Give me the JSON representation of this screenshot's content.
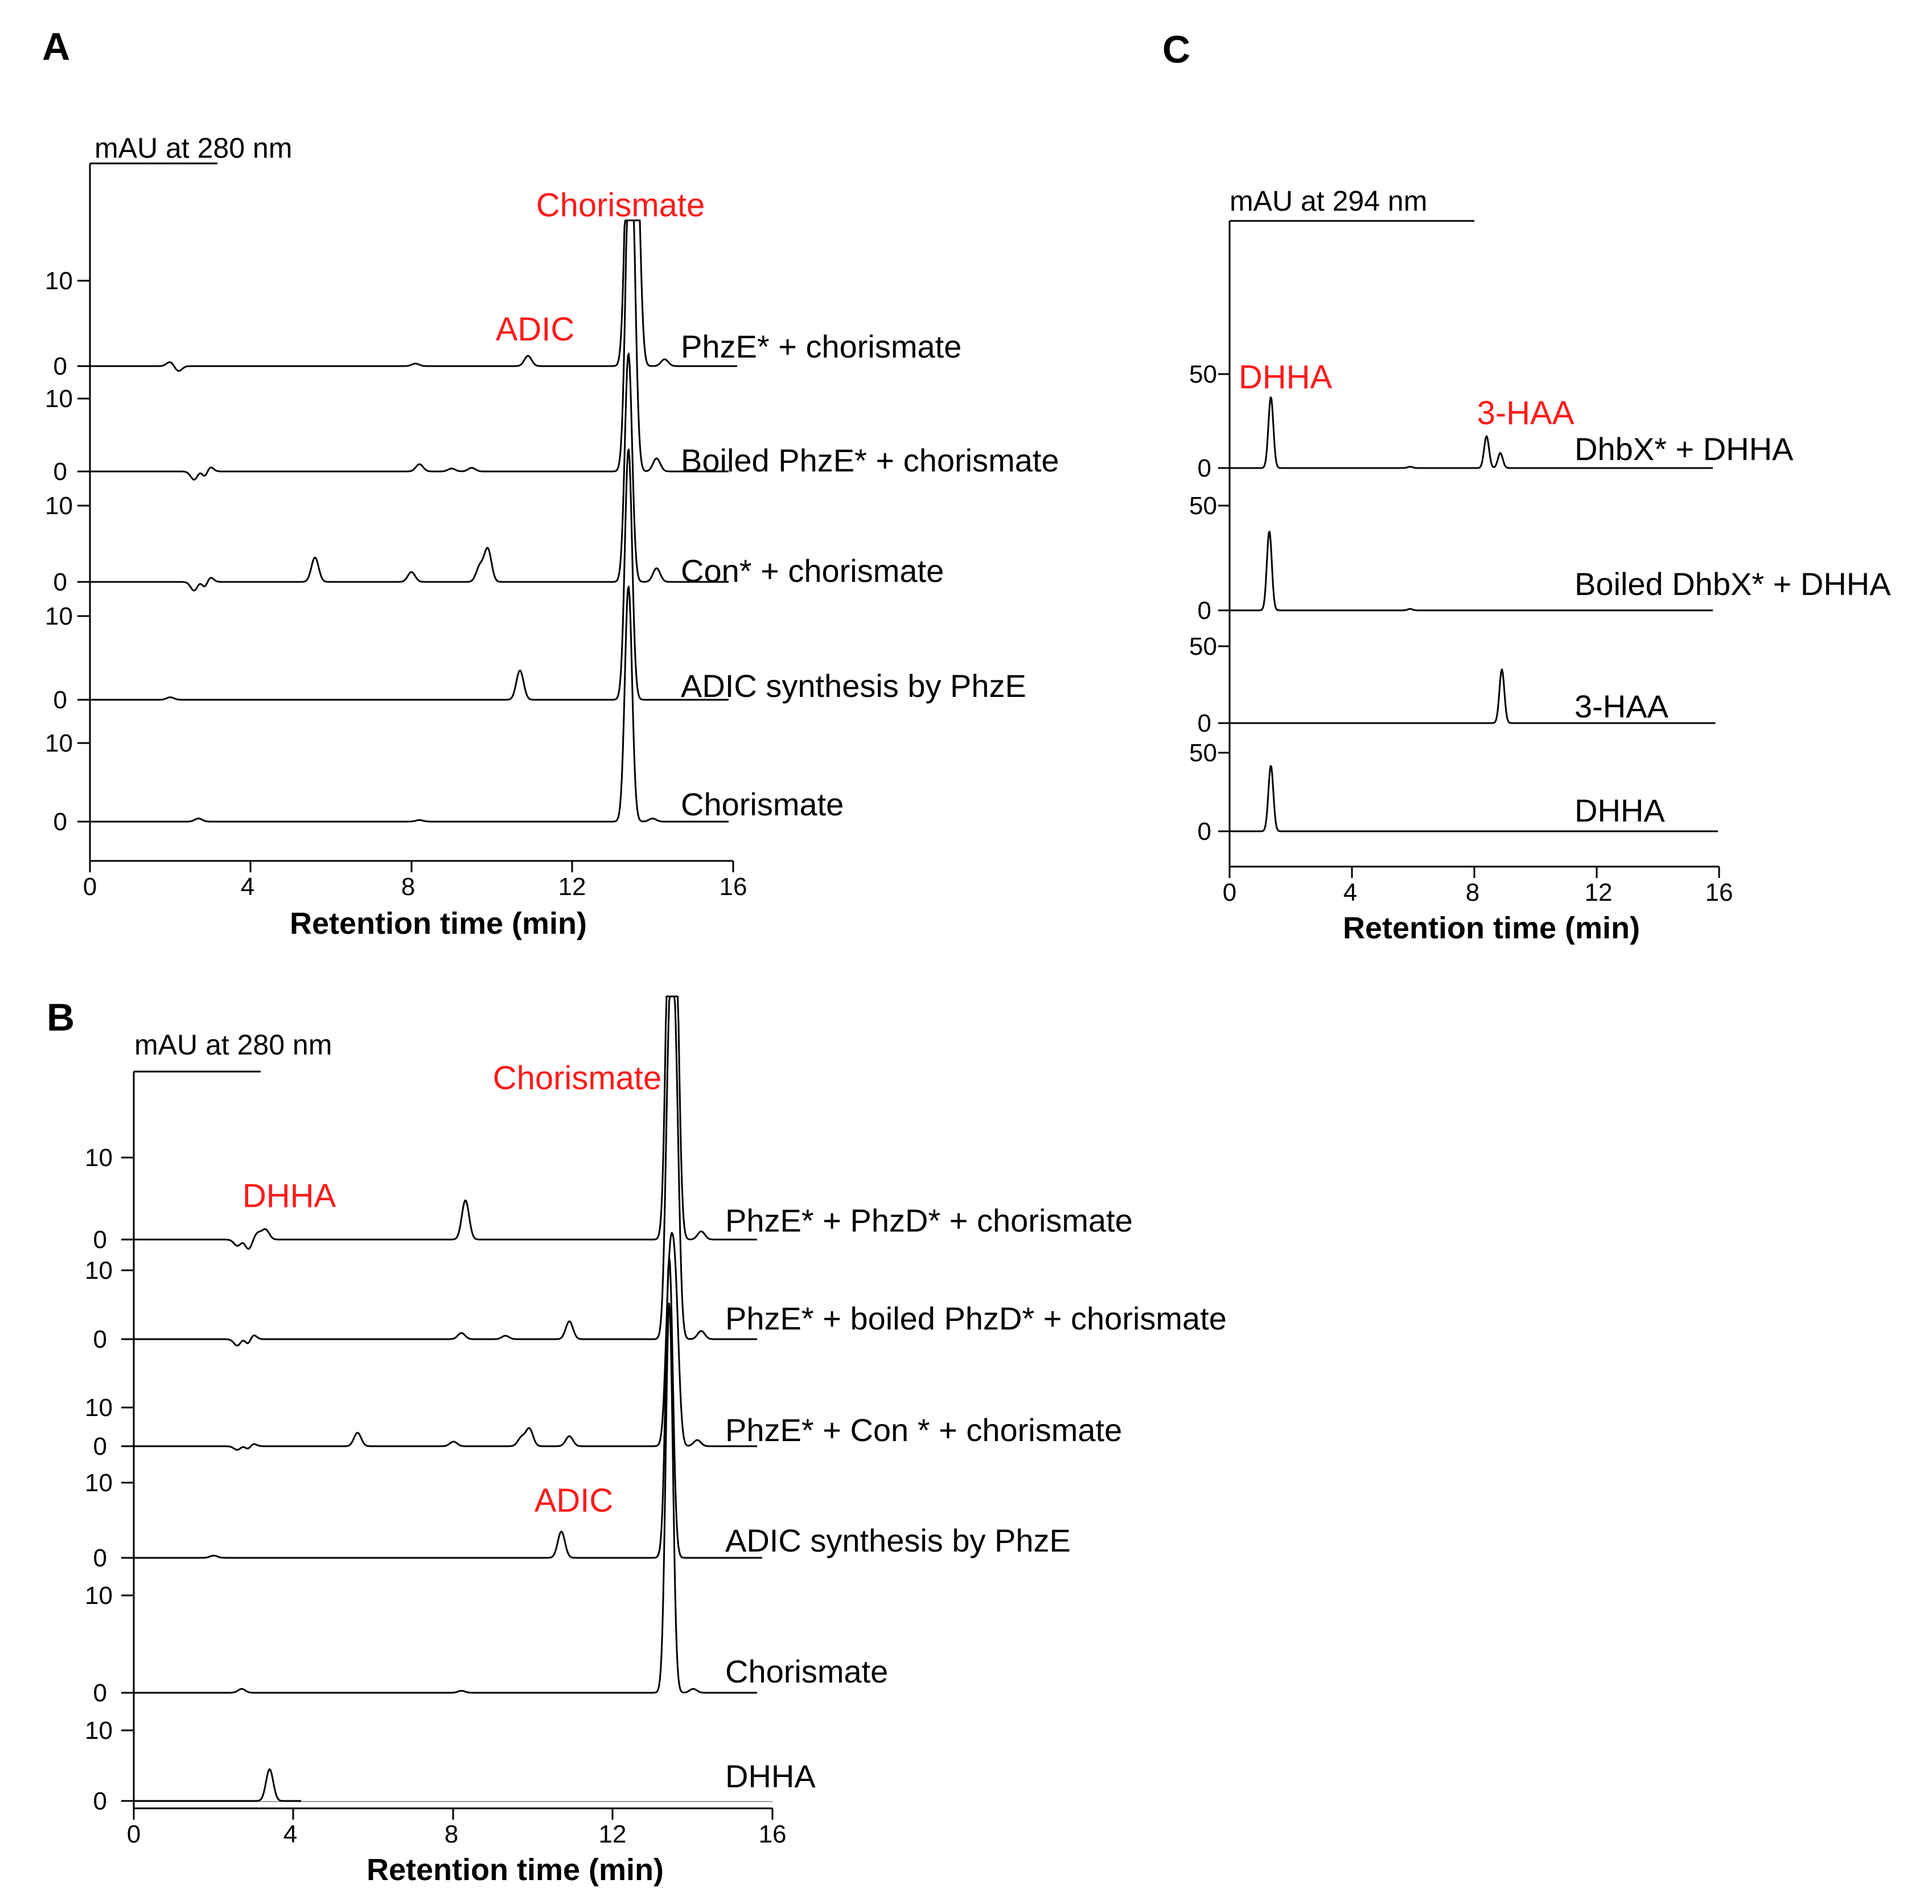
{
  "panels": {
    "A": {
      "letter": "A",
      "unit_label": "mAU at 280 nm",
      "xlabel": "Retention time (min)",
      "xticks": [
        "0",
        "4",
        "8",
        "12",
        "16"
      ],
      "traces": [
        {
          "label": "PhzE* + chorismate",
          "ytick_top": "10",
          "ytick_zero": "0"
        },
        {
          "label": "Boiled PhzE* + chorismate",
          "ytick_top": "10",
          "ytick_zero": "0"
        },
        {
          "label": "Con* + chorismate",
          "ytick_top": "10",
          "ytick_zero": "0"
        },
        {
          "label": "ADIC synthesis by PhzE",
          "ytick_top": "10",
          "ytick_zero": "0"
        },
        {
          "label": "Chorismate",
          "ytick_top": "10",
          "ytick_zero": "0"
        }
      ],
      "annotations": {
        "chorismate": "Chorismate",
        "adic": "ADIC"
      }
    },
    "B": {
      "letter": "B",
      "unit_label": "mAU at 280 nm",
      "xlabel": "Retention time (min)",
      "xticks": [
        "0",
        "4",
        "8",
        "12",
        "16"
      ],
      "traces": [
        {
          "label": "PhzE* + PhzD* + chorismate",
          "ytick_top": "10",
          "ytick_zero": "0"
        },
        {
          "label": "PhzE* + boiled PhzD* + chorismate",
          "ytick_top": "10",
          "ytick_zero": "0"
        },
        {
          "label": "PhzE* + Con * + chorismate",
          "ytick_top": "10",
          "ytick_zero": "0"
        },
        {
          "label": "ADIC synthesis by PhzE",
          "ytick_top": "10",
          "ytick_zero": "0"
        },
        {
          "label": "Chorismate",
          "ytick_top": "10",
          "ytick_zero": "0"
        },
        {
          "label": "DHHA",
          "ytick_top": "10",
          "ytick_zero": "0"
        }
      ],
      "annotations": {
        "chorismate": "Chorismate",
        "dhha": "DHHA",
        "adic": "ADIC"
      }
    },
    "C": {
      "letter": "C",
      "unit_label": "mAU at 294 nm",
      "xlabel": "Retention time (min)",
      "xticks": [
        "0",
        "4",
        "8",
        "12",
        "16"
      ],
      "traces": [
        {
          "label": "DhbX* + DHHA",
          "ytick_top": "50",
          "ytick_zero": "0"
        },
        {
          "label": "Boiled DhbX* + DHHA",
          "ytick_top": "50",
          "ytick_zero": "0"
        },
        {
          "label": "3-HAA",
          "ytick_top": "50",
          "ytick_zero": "0"
        },
        {
          "label": "DHHA",
          "ytick_top": "50",
          "ytick_zero": "0"
        }
      ],
      "annotations": {
        "dhha": "DHHA",
        "haa": "3-HAA"
      }
    }
  },
  "chart_data": [
    {
      "type": "line",
      "panel": "A",
      "title": "",
      "xlabel": "Retention time (min)",
      "ylabel": "mAU at 280 nm",
      "xlim": [
        0,
        16
      ],
      "ylim_per_trace": [
        0,
        10
      ],
      "series": [
        {
          "name": "PhzE* + chorismate",
          "peaks": [
            {
              "x": 2.0,
              "h": 0.5
            },
            {
              "x": 2.2,
              "h": -0.6
            },
            {
              "x": 8.1,
              "h": 0.3
            },
            {
              "x": 10.9,
              "h": 1.2
            },
            {
              "x": 13.4,
              "h": 30
            },
            {
              "x": 13.6,
              "h": 26
            },
            {
              "x": 14.3,
              "h": 0.8
            }
          ]
        },
        {
          "name": "Boiled PhzE* + chorismate",
          "peaks": [
            {
              "x": 2.6,
              "h": -1.2
            },
            {
              "x": 2.8,
              "h": 1.5
            },
            {
              "x": 2.85,
              "h": -2.5
            },
            {
              "x": 2.95,
              "h": 1.2
            },
            {
              "x": 8.2,
              "h": 1.0
            },
            {
              "x": 9.0,
              "h": 0.4
            },
            {
              "x": 9.5,
              "h": 0.5
            },
            {
              "x": 13.4,
              "h": 30
            },
            {
              "x": 13.5,
              "h": 28
            },
            {
              "x": 14.1,
              "h": 1.8
            }
          ]
        },
        {
          "name": "Con* + chorismate",
          "peaks": [
            {
              "x": 2.6,
              "h": -1.2
            },
            {
              "x": 2.8,
              "h": 1.5
            },
            {
              "x": 2.85,
              "h": -2.5
            },
            {
              "x": 2.95,
              "h": 1.2
            },
            {
              "x": 5.6,
              "h": 3.2
            },
            {
              "x": 8.0,
              "h": 1.3
            },
            {
              "x": 9.7,
              "h": 2.0
            },
            {
              "x": 9.9,
              "h": 4.3
            },
            {
              "x": 13.4,
              "h": 30
            },
            {
              "x": 14.1,
              "h": 1.8
            }
          ]
        },
        {
          "name": "ADIC synthesis by PhzE",
          "peaks": [
            {
              "x": 2.0,
              "h": 0.3
            },
            {
              "x": 10.7,
              "h": 3.5
            },
            {
              "x": 13.4,
              "h": 30
            }
          ]
        },
        {
          "name": "Chorismate",
          "peaks": [
            {
              "x": 2.7,
              "h": 0.4
            },
            {
              "x": 8.2,
              "h": 0.2
            },
            {
              "x": 13.4,
              "h": 30
            },
            {
              "x": 14.0,
              "h": 0.4
            }
          ]
        }
      ]
    },
    {
      "type": "line",
      "panel": "B",
      "title": "",
      "xlabel": "Retention time (min)",
      "ylabel": "mAU at 280 nm",
      "xlim": [
        0,
        16
      ],
      "ylim_per_trace": [
        0,
        10
      ],
      "series": [
        {
          "name": "PhzE* + PhzD* + chorismate",
          "peaks": [
            {
              "x": 2.6,
              "h": -0.8
            },
            {
              "x": 2.8,
              "h": 0.8
            },
            {
              "x": 2.85,
              "h": -1.8
            },
            {
              "x": 3.1,
              "h": 0.8
            },
            {
              "x": 3.3,
              "h": 1.2
            },
            {
              "x": 8.3,
              "h": 4.8
            },
            {
              "x": 13.4,
              "h": 40
            },
            {
              "x": 13.55,
              "h": 38
            },
            {
              "x": 14.2,
              "h": 1.0
            }
          ]
        },
        {
          "name": "PhzE* + boiled PhzD* + chorismate",
          "peaks": [
            {
              "x": 2.6,
              "h": -1.0
            },
            {
              "x": 2.8,
              "h": 1.5
            },
            {
              "x": 2.85,
              "h": -2.5
            },
            {
              "x": 2.95,
              "h": 1.2
            },
            {
              "x": 8.2,
              "h": 0.9
            },
            {
              "x": 9.3,
              "h": 0.5
            },
            {
              "x": 10.9,
              "h": 2.6
            },
            {
              "x": 13.4,
              "h": 40
            },
            {
              "x": 13.55,
              "h": 38
            },
            {
              "x": 14.2,
              "h": 1.2
            }
          ]
        },
        {
          "name": "PhzE* + Con * + chorismate",
          "peaks": [
            {
              "x": 2.6,
              "h": -1.0
            },
            {
              "x": 2.8,
              "h": 1.5
            },
            {
              "x": 2.85,
              "h": -2.5
            },
            {
              "x": 2.95,
              "h": 1.2
            },
            {
              "x": 5.6,
              "h": 3.5
            },
            {
              "x": 8.0,
              "h": 1.2
            },
            {
              "x": 9.7,
              "h": 2.2
            },
            {
              "x": 9.9,
              "h": 4.5
            },
            {
              "x": 10.9,
              "h": 2.6
            },
            {
              "x": 13.4,
              "h": 40
            },
            {
              "x": 13.55,
              "h": 38
            },
            {
              "x": 14.1,
              "h": 1.6
            }
          ]
        },
        {
          "name": "ADIC synthesis by PhzE",
          "peaks": [
            {
              "x": 2.0,
              "h": 0.3
            },
            {
              "x": 10.7,
              "h": 3.5
            },
            {
              "x": 13.4,
              "h": 40
            }
          ]
        },
        {
          "name": "Chorismate",
          "peaks": [
            {
              "x": 2.7,
              "h": 0.4
            },
            {
              "x": 8.2,
              "h": 0.2
            },
            {
              "x": 13.4,
              "h": 40
            },
            {
              "x": 14.0,
              "h": 0.4
            }
          ]
        },
        {
          "name": "DHHA",
          "peaks": [
            {
              "x": 3.4,
              "h": 4.5
            }
          ]
        }
      ]
    },
    {
      "type": "line",
      "panel": "C",
      "title": "",
      "xlabel": "Retention time (min)",
      "ylabel": "mAU at 294 nm",
      "xlim": [
        0,
        16
      ],
      "ylim_per_trace": [
        0,
        50
      ],
      "series": [
        {
          "name": "DhbX* + DHHA",
          "peaks": [
            {
              "x": 1.35,
              "h": 38
            },
            {
              "x": 5.9,
              "h": 0.7
            },
            {
              "x": 8.4,
              "h": 17
            },
            {
              "x": 8.85,
              "h": 8
            }
          ]
        },
        {
          "name": "Boiled DhbX* + DHHA",
          "peaks": [
            {
              "x": 1.3,
              "h": 38
            },
            {
              "x": 5.9,
              "h": 0.7
            }
          ]
        },
        {
          "name": "3-HAA",
          "peaks": [
            {
              "x": 8.9,
              "h": 35
            }
          ]
        },
        {
          "name": "DHHA",
          "peaks": [
            {
              "x": 1.35,
              "h": 42
            }
          ]
        }
      ]
    }
  ]
}
